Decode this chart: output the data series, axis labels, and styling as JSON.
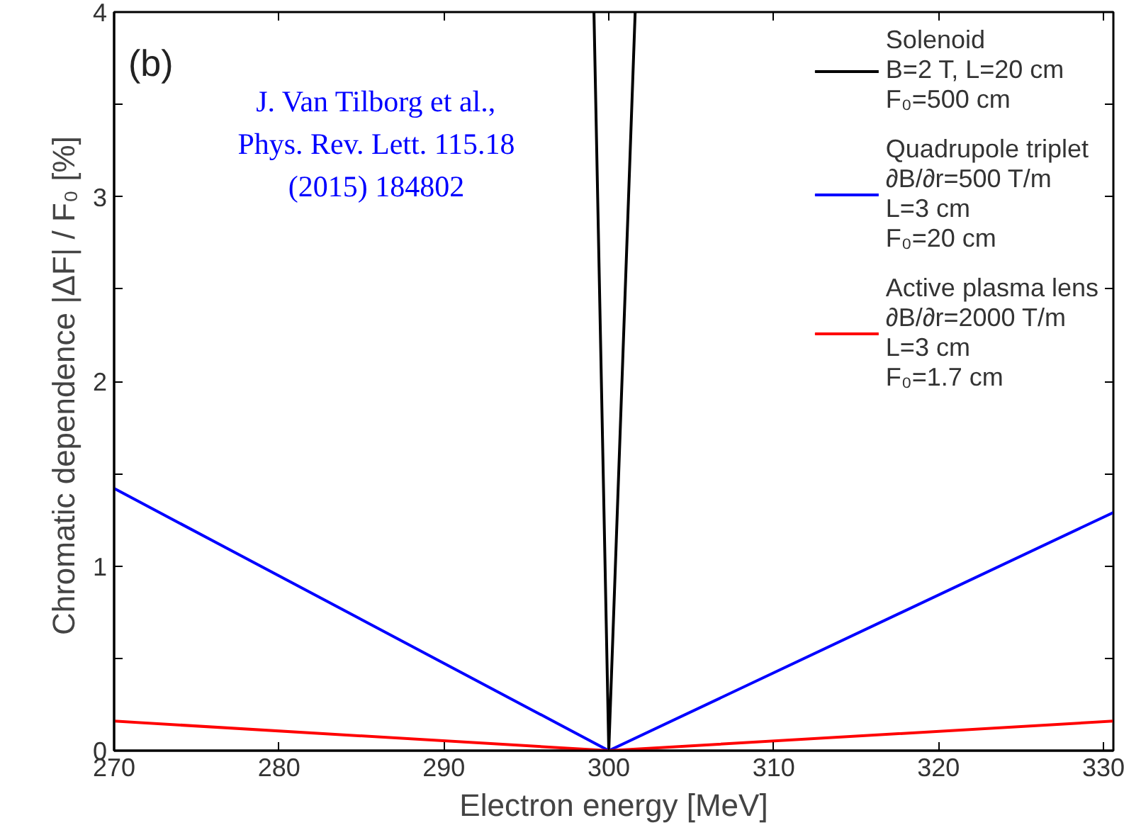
{
  "chart_data": {
    "type": "line",
    "xlabel": "Electron energy [MeV]",
    "ylabel": "Chromatic dependence |ΔF| / F₀  [%]",
    "xlim": [
      270,
      330.6
    ],
    "xticks": [
      270,
      280,
      290,
      300,
      310,
      320,
      330
    ],
    "ylim": [
      0,
      4
    ],
    "yticks": [
      0,
      {
        "value": 0.5,
        "label": null
      },
      1,
      {
        "value": 1.5,
        "label": null
      },
      2,
      {
        "value": 2.5,
        "label": null
      },
      3,
      {
        "value": 3.5,
        "label": null
      },
      4
    ],
    "grid": false,
    "legend": "top right",
    "annotations": [
      "(b)",
      "J. Van Tilborg et al.,\nPhys. Rev. Lett. 115.18\n(2015) 184802"
    ],
    "series": [
      {
        "name": "Solenoid\nB=2 T, L=20 cm\nF₀=500 cm",
        "color": "#000000",
        "x": [
          299.1,
          300,
          301.6
        ],
        "values": [
          4,
          0,
          4
        ]
      },
      {
        "name": "Quadrupole triplet\n∂B/∂r=500 T/m\nL=3 cm\nF₀=20 cm",
        "color": "#0000ff",
        "x": [
          270,
          300,
          330.6
        ],
        "values": [
          1.42,
          0,
          1.29
        ]
      },
      {
        "name": "Active plasma lens\n∂B/∂r=2000 T/m\nL=3 cm\nF₀=1.7 cm",
        "color": "#ff0000",
        "x": [
          270,
          300,
          330.6
        ],
        "values": [
          0.16,
          0,
          0.16
        ]
      }
    ]
  }
}
